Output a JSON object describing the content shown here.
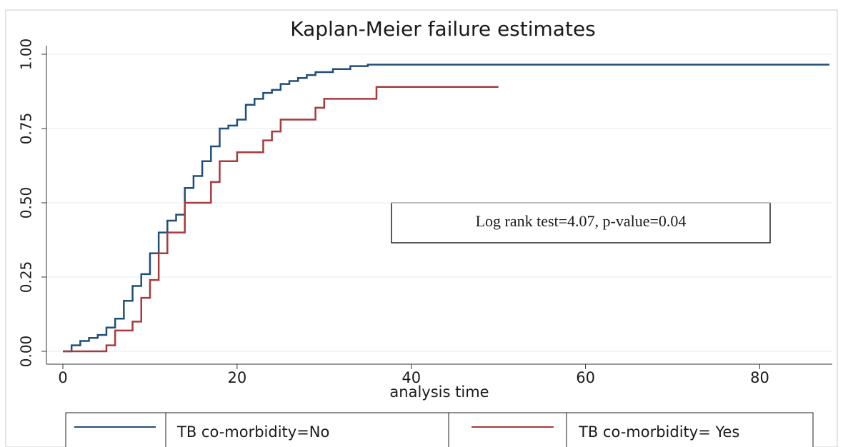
{
  "chart_data": {
    "type": "line",
    "step": true,
    "title": "Kaplan-Meier failure estimates",
    "x_label": "analysis time",
    "xlim": [
      0,
      88
    ],
    "xticks": [
      0,
      20,
      40,
      60,
      80
    ],
    "ylim": [
      0,
      1
    ],
    "yticks": [
      {
        "value": 0,
        "label": "0.00"
      },
      {
        "value": 0.25,
        "label": "0.25"
      },
      {
        "value": 0.5,
        "label": "0.50"
      },
      {
        "value": 0.75,
        "label": "0.75"
      },
      {
        "value": 1,
        "label": "1.00"
      }
    ],
    "grid": true,
    "legend": "bottom",
    "annotation": "Log rank test=4.07, p-value=0.04",
    "series": [
      {
        "name": "TB co-morbidity=No",
        "color": "#1f4e79",
        "x": [
          0,
          1,
          2,
          3,
          4,
          5,
          6,
          7,
          8,
          9,
          10,
          11,
          12,
          13,
          14,
          15,
          16,
          17,
          18,
          19,
          20,
          21,
          22,
          23,
          24,
          25,
          26,
          27,
          28,
          29,
          31,
          33,
          35,
          88
        ],
        "values": [
          0,
          0.02,
          0.035,
          0.045,
          0.055,
          0.08,
          0.11,
          0.17,
          0.22,
          0.26,
          0.33,
          0.4,
          0.44,
          0.46,
          0.55,
          0.59,
          0.64,
          0.69,
          0.75,
          0.76,
          0.78,
          0.83,
          0.85,
          0.87,
          0.88,
          0.9,
          0.91,
          0.92,
          0.93,
          0.94,
          0.95,
          0.96,
          0.965,
          0.965
        ]
      },
      {
        "name": "TB co-morbidity= Yes",
        "color": "#a83a3c",
        "x": [
          0,
          5,
          6,
          8,
          9,
          10,
          11,
          12,
          14,
          17,
          18,
          20,
          23,
          24,
          25,
          29,
          30,
          36,
          50
        ],
        "values": [
          0,
          0.02,
          0.07,
          0.1,
          0.18,
          0.24,
          0.33,
          0.4,
          0.5,
          0.57,
          0.64,
          0.67,
          0.71,
          0.74,
          0.78,
          0.82,
          0.85,
          0.89,
          0.89
        ]
      }
    ]
  }
}
